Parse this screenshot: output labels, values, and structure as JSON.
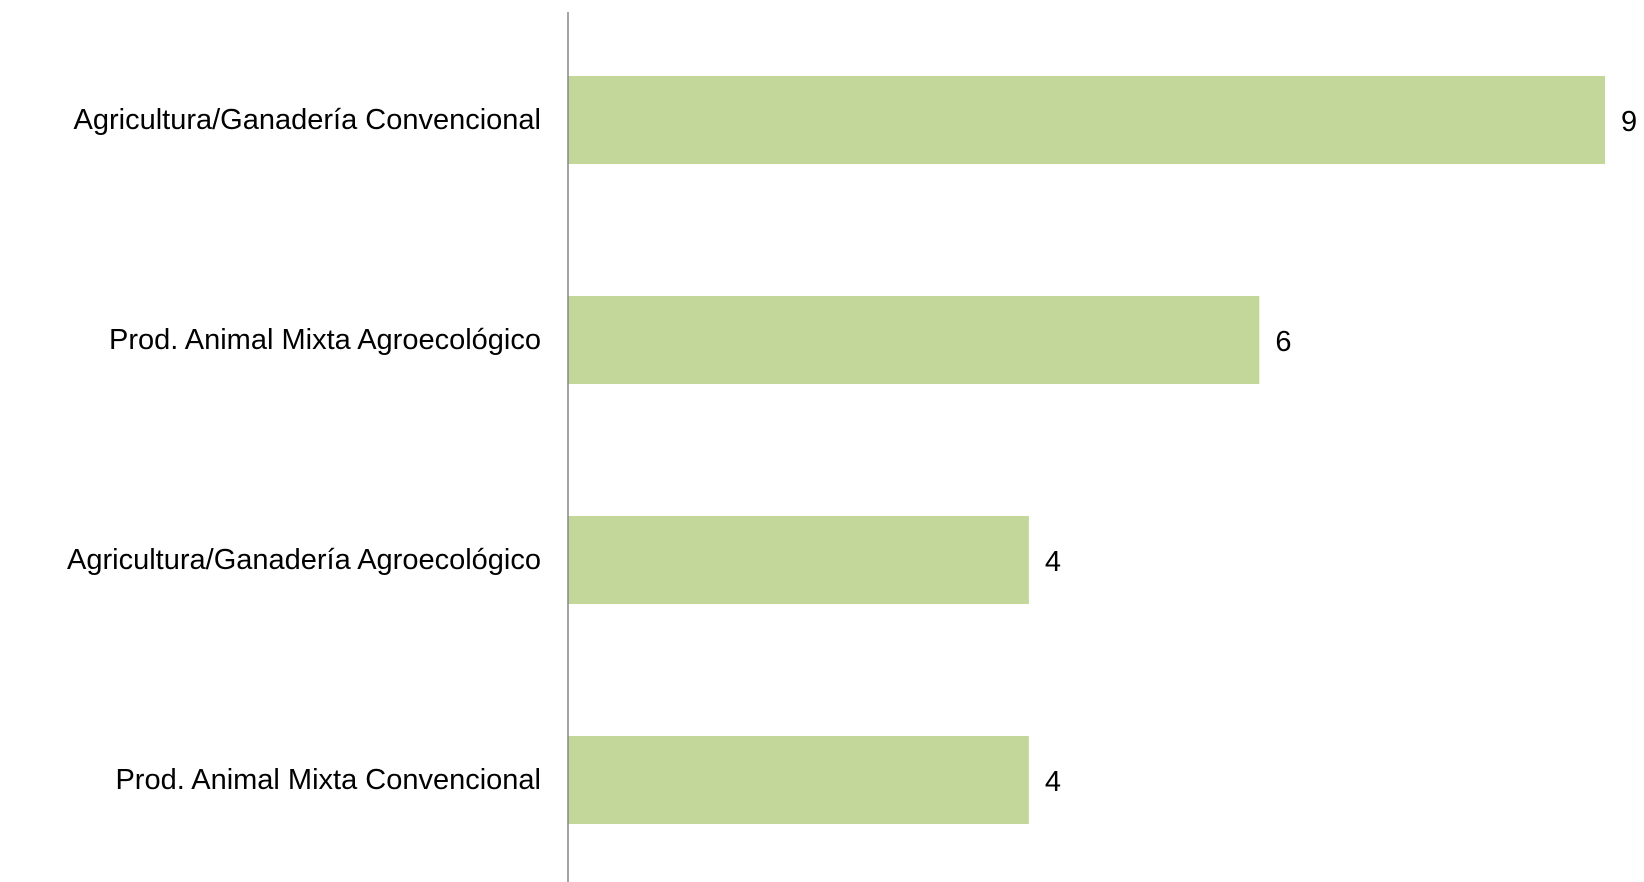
{
  "chart_data": {
    "type": "bar",
    "orientation": "horizontal",
    "title": "",
    "xlabel": "",
    "ylabel": "",
    "categories": [
      "Agricultura/Ganadería Convencional",
      "Prod. Animal Mixta Agroecológico",
      "Agricultura/Ganadería Agroecológico",
      "Prod. Animal Mixta Convencional"
    ],
    "values": [
      9,
      6,
      4,
      4
    ],
    "data_labels": [
      "9",
      "6",
      "4",
      "4"
    ],
    "xlim": [
      0,
      9
    ],
    "grid": false,
    "legend": "none",
    "colors": {
      "bar": "#c4d79b",
      "axis": "#868686",
      "text": "#000000"
    }
  }
}
